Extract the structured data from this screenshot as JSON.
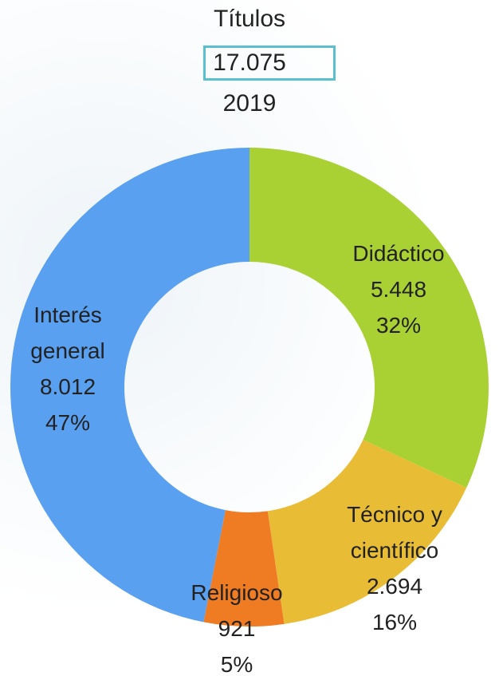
{
  "chart_data": {
    "type": "donut",
    "title": "Títulos",
    "total": 17075,
    "total_label": "17.075",
    "subtitle": "2019",
    "categories": [
      "Didáctico",
      "Técnico y científico",
      "Religioso",
      "Interés general"
    ],
    "values": [
      5448,
      2694,
      921,
      8012
    ],
    "value_labels": [
      "5.448",
      "2.694",
      "921",
      "8.012"
    ],
    "percent_labels": [
      "32%",
      "16%",
      "5%",
      "47%"
    ],
    "colors": [
      "#a9d134",
      "#e8bd35",
      "#ef7b23",
      "#5aa0f0"
    ]
  }
}
